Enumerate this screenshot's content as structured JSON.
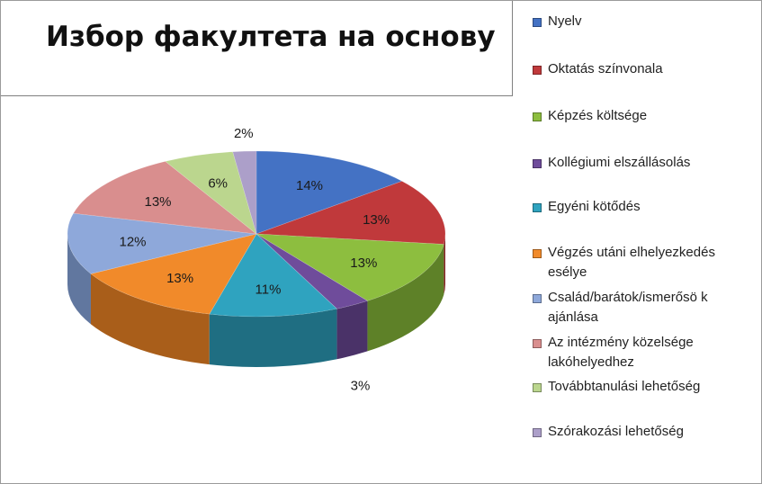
{
  "chart_data": {
    "type": "pie",
    "title": "Избор факултета на основу",
    "legend_position": "right",
    "label_format": "percent",
    "slices": [
      {
        "name": "Nyelv",
        "value": 14,
        "label": "14%",
        "color": "#4472C4",
        "dark": "#2E4F8C"
      },
      {
        "name": "Oktatás színvonala",
        "value": 13,
        "label": "13%",
        "color": "#C0393B",
        "dark": "#842425"
      },
      {
        "name": "Képzés költsége",
        "value": 13,
        "label": "13%",
        "color": "#8DBE3F",
        "dark": "#5E8128"
      },
      {
        "name": "Kollégiumi elszállásolás",
        "value": 3,
        "label": "3%",
        "color": "#6F4C9B",
        "dark": "#4A3268"
      },
      {
        "name": "Egyéni kötődés",
        "value": 11,
        "label": "11%",
        "color": "#2FA3BF",
        "dark": "#1F6E82"
      },
      {
        "name": "Végzés utáni elhelyezkedés esélye",
        "value": 13,
        "label": "13%",
        "color": "#F18A2A",
        "dark": "#A95E1A"
      },
      {
        "name": "Család/barátok/ismerősö k ajánlása",
        "value": 12,
        "label": "12%",
        "color": "#8EA8DA",
        "dark": "#61779F"
      },
      {
        "name": "Az intézmény közelsége lakóhelyedhez",
        "value": 13,
        "label": "13%",
        "color": "#D98E8E",
        "dark": "#9E6262"
      },
      {
        "name": "Továbbtanulási lehetőség",
        "value": 6,
        "label": "6%",
        "color": "#BBD68E",
        "dark": "#849A5F"
      },
      {
        "name": "Szórakozási lehetőség",
        "value": 2,
        "label": "2%",
        "color": "#AC9FC9",
        "dark": "#76699A"
      }
    ]
  }
}
